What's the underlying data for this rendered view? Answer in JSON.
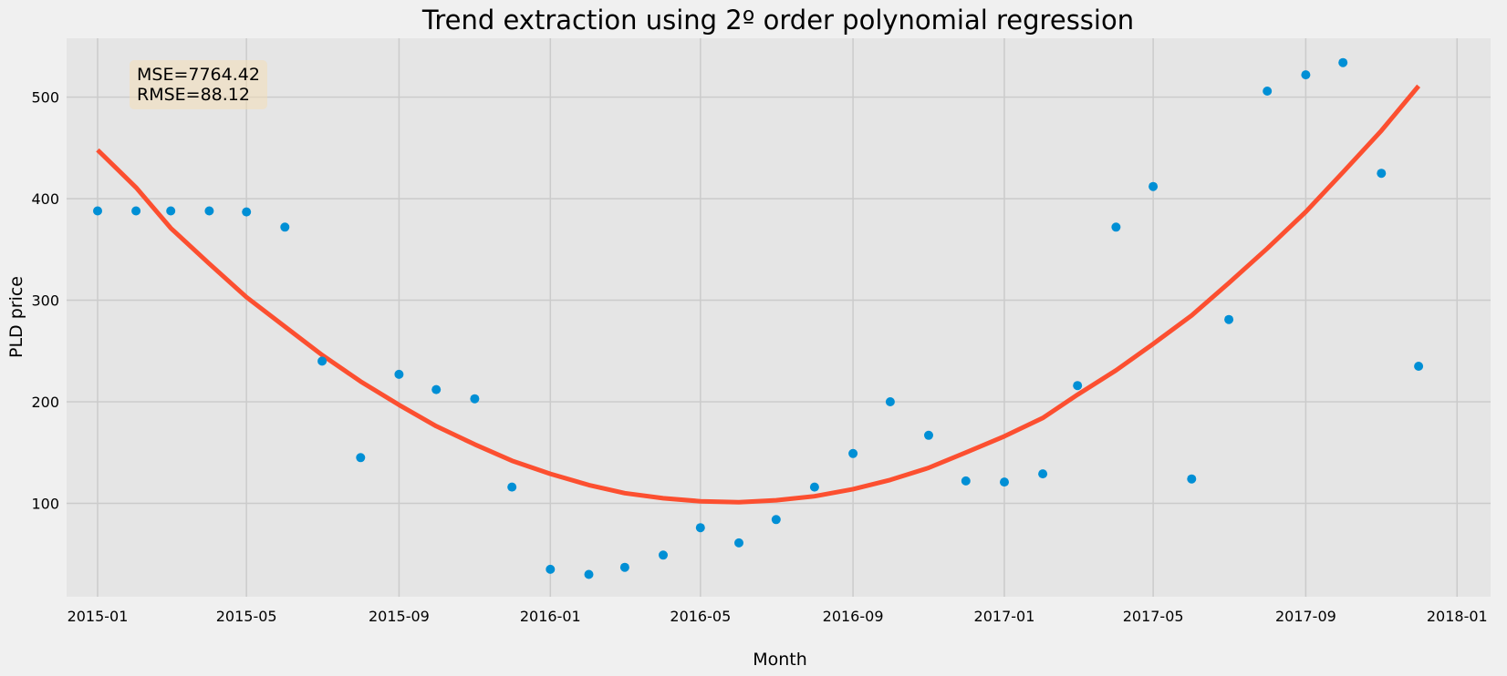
{
  "chart_data": {
    "type": "scatter",
    "title": "Trend extraction using 2º order polynomial regression",
    "xlabel": "Month",
    "ylabel": "PLD price",
    "xlim": [
      "2014-12-07",
      "2018-01-28"
    ],
    "ylim": [
      8,
      558
    ],
    "x_ticks": [
      "2015-01",
      "2015-05",
      "2015-09",
      "2016-01",
      "2016-05",
      "2016-09",
      "2017-01",
      "2017-05",
      "2017-09",
      "2018-01"
    ],
    "y_ticks": [
      100,
      200,
      300,
      400,
      500
    ],
    "grid": true,
    "annotation": [
      "MSE=7764.42",
      "RMSE=88.12"
    ],
    "series": [
      {
        "kind": "scatter",
        "color": "#008fd5",
        "x": [
          "2015-01-01",
          "2015-02-01",
          "2015-03-01",
          "2015-04-01",
          "2015-05-01",
          "2015-06-01",
          "2015-07-01",
          "2015-08-01",
          "2015-09-01",
          "2015-10-01",
          "2015-11-01",
          "2015-12-01",
          "2016-01-01",
          "2016-02-01",
          "2016-03-01",
          "2016-04-01",
          "2016-05-01",
          "2016-06-01",
          "2016-07-01",
          "2016-08-01",
          "2016-09-01",
          "2016-10-01",
          "2016-11-01",
          "2016-12-01",
          "2017-01-01",
          "2017-02-01",
          "2017-03-01",
          "2017-04-01",
          "2017-05-01",
          "2017-06-01",
          "2017-07-01",
          "2017-08-01",
          "2017-09-01",
          "2017-10-01",
          "2017-11-01",
          "2017-12-01"
        ],
        "y": [
          388,
          388,
          388,
          388,
          387,
          372,
          240,
          145,
          227,
          212,
          203,
          116,
          35,
          30,
          37,
          49,
          76,
          61,
          84,
          116,
          149,
          200,
          167,
          122,
          121,
          129,
          216,
          372,
          412,
          124,
          281,
          506,
          522,
          534,
          425,
          235
        ]
      },
      {
        "kind": "line",
        "color": "#fc4f30",
        "x": [
          "2015-01-01",
          "2015-02-01",
          "2015-03-01",
          "2015-04-01",
          "2015-05-01",
          "2015-06-01",
          "2015-07-01",
          "2015-08-01",
          "2015-09-01",
          "2015-10-01",
          "2015-11-01",
          "2015-12-01",
          "2016-01-01",
          "2016-02-01",
          "2016-03-01",
          "2016-04-01",
          "2016-05-01",
          "2016-06-01",
          "2016-07-01",
          "2016-08-01",
          "2016-09-01",
          "2016-10-01",
          "2016-11-01",
          "2016-12-01",
          "2017-01-01",
          "2017-02-01",
          "2017-03-01",
          "2017-04-01",
          "2017-05-01",
          "2017-06-01",
          "2017-07-01",
          "2017-08-01",
          "2017-09-01",
          "2017-10-01",
          "2017-11-01",
          "2017-12-01"
        ],
        "y": [
          448,
          411,
          371,
          336,
          303,
          274,
          246,
          220,
          197,
          176,
          158,
          142,
          129,
          118,
          110,
          105,
          102,
          101,
          103,
          107,
          114,
          123,
          135,
          150,
          166,
          184,
          207,
          231,
          257,
          285,
          317,
          351,
          387,
          426,
          467,
          511
        ]
      }
    ]
  }
}
